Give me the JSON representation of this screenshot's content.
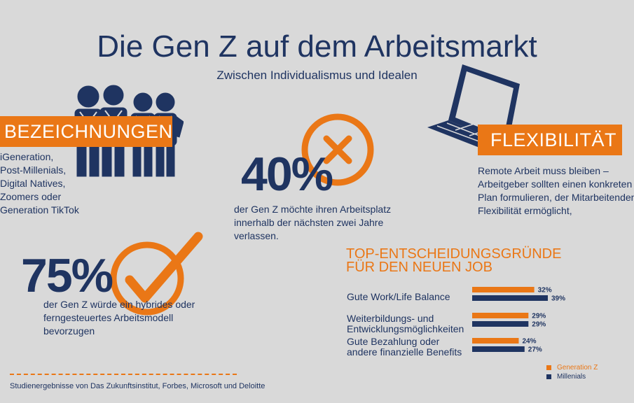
{
  "title": "Die Gen Z auf dem Arbeitsmarkt",
  "subtitle": "Zwischen Individualismus und Idealen",
  "colors": {
    "orange": "#ea7716",
    "navy": "#1f3461",
    "background": "#d9d9d9"
  },
  "bezeichnungen": {
    "heading": "BEZEICHNUNGEN",
    "lines": [
      "iGeneration,",
      "Post-Millenials,",
      "Digital Natives,",
      "Zoomers oder",
      "Generation TikTok"
    ],
    "icon": "group-of-people-icon"
  },
  "stat_40": {
    "value": "40%",
    "lines": [
      "der Gen Z möchte ihren Arbeitsplatz",
      "innerhalb der nächsten zwei Jahre",
      "verlassen."
    ],
    "icon": "x-circle-icon"
  },
  "flexibilitaet": {
    "heading": "FLEXIBILITÄT",
    "lines": [
      "Remote Arbeit muss bleiben –",
      "Arbeitgeber sollten einen konkreten",
      "Plan formulieren, der Mitarbeitenden",
      "Flexibilität ermöglicht,"
    ],
    "icon": "laptop-icon"
  },
  "stat_75": {
    "value": "75%",
    "lines": [
      "der Gen Z würde ein hybrides oder",
      "ferngesteuertes Arbeitsmodell",
      "bevorzugen"
    ],
    "icon": "checkmark-circle-icon"
  },
  "chart_data": {
    "type": "bar",
    "orientation": "horizontal",
    "title": [
      "TOP-ENTSCHEIDUNGSGRÜNDE",
      "FÜR DEN NEUEN JOB"
    ],
    "categories": [
      [
        "Gute Work/Life Balance"
      ],
      [
        "Weiterbildungs- und",
        "Entwicklungsmöglichkeiten"
      ],
      [
        "Gute Bezahlung oder",
        "andere finanzielle Benefits"
      ]
    ],
    "series": [
      {
        "name": "Generation Z",
        "color": "#ea7716",
        "values": [
          32,
          29,
          24
        ]
      },
      {
        "name": "Millenials",
        "color": "#1f3461",
        "values": [
          39,
          29,
          27
        ]
      }
    ],
    "value_suffix": "%",
    "xlim": [
      0,
      39
    ],
    "legend": "bottom-right",
    "grid": false
  },
  "source": "Studienergebnisse von Das Zukunftsinstitut, Forbes, Microsoft und Deloitte"
}
